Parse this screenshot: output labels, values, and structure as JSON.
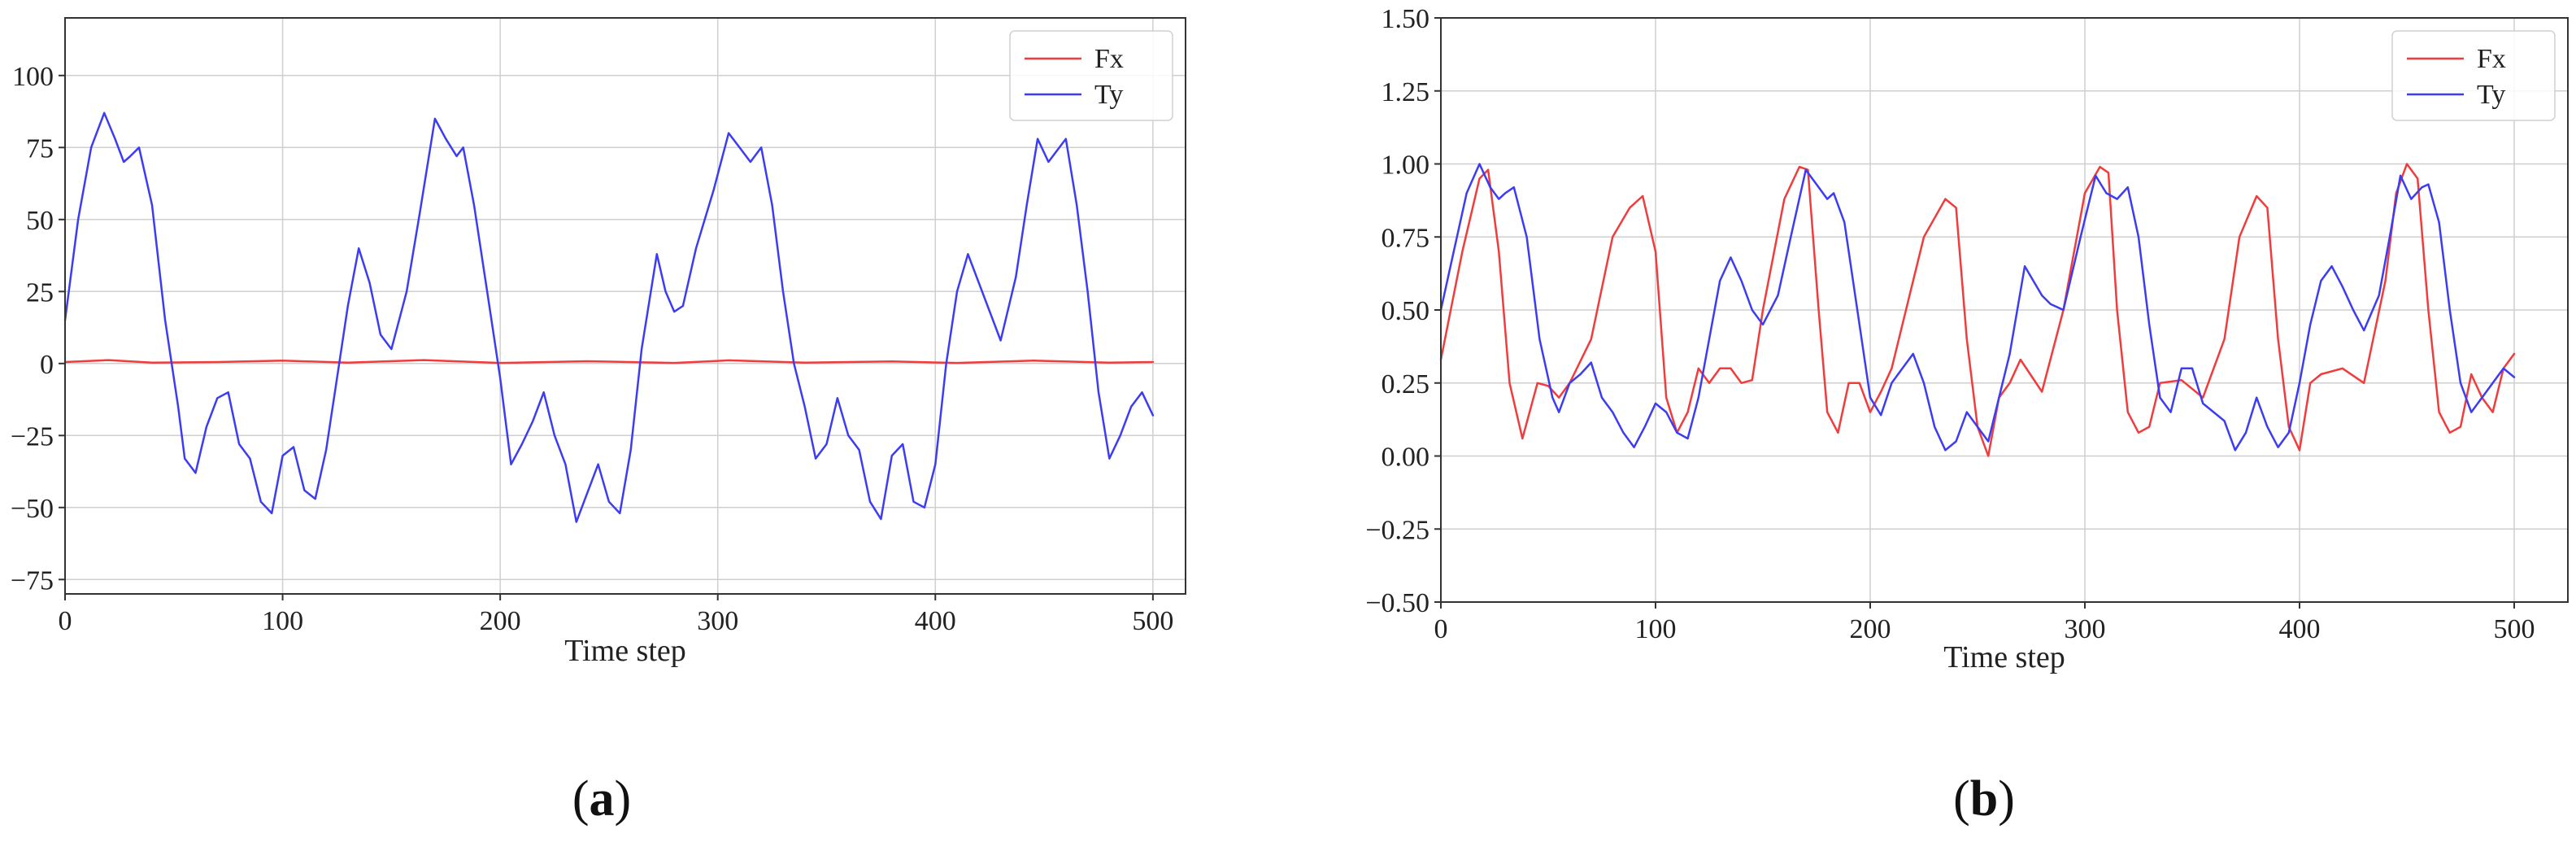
{
  "colors": {
    "fx": "#f03c3c",
    "ty": "#3c3cf5",
    "grid": "#cfcfcf",
    "axis": "#333333"
  },
  "chart_data": [
    {
      "type": "line",
      "panel": "(a)",
      "panel_letter": "a",
      "xlabel": "Time step",
      "ylabel": "",
      "xlim": [
        0,
        515
      ],
      "ylim": [
        -80,
        120
      ],
      "xticks": [
        0,
        100,
        200,
        300,
        400,
        500
      ],
      "yticks": [
        -75,
        -50,
        -25,
        0,
        25,
        50,
        75,
        100
      ],
      "ytick_labels": [
        "−75",
        "−50",
        "−25",
        "0",
        "25",
        "50",
        "75",
        "100"
      ],
      "grid": true,
      "legend_position": "top-right",
      "series": [
        {
          "name": "Fx",
          "color": "#f03c3c",
          "x": [
            0,
            20,
            40,
            70,
            100,
            130,
            165,
            200,
            240,
            280,
            305,
            340,
            380,
            410,
            445,
            480,
            500
          ],
          "y": [
            0.5,
            1.2,
            0.3,
            0.5,
            1,
            0.3,
            1.2,
            0.2,
            0.8,
            0.2,
            1.1,
            0.3,
            0.7,
            0.2,
            1,
            0.3,
            0.5
          ]
        },
        {
          "name": "Ty",
          "color": "#3c3cf5",
          "x": [
            0,
            6,
            12,
            18,
            23,
            27,
            30,
            34,
            40,
            46,
            52,
            55,
            60,
            65,
            70,
            75,
            80,
            85,
            90,
            95,
            100,
            105,
            110,
            115,
            120,
            125,
            130,
            135,
            140,
            145,
            150,
            157,
            163,
            170,
            175,
            180,
            183,
            188,
            195,
            200,
            205,
            210,
            215,
            220,
            225,
            230,
            235,
            240,
            245,
            250,
            255,
            260,
            265,
            272,
            276,
            280,
            284,
            290,
            298,
            305,
            310,
            315,
            320,
            325,
            330,
            335,
            340,
            345,
            350,
            355,
            360,
            365,
            370,
            375,
            380,
            385,
            390,
            395,
            400,
            405,
            410,
            415,
            420,
            425,
            430,
            437,
            442,
            447,
            452,
            457,
            460,
            465,
            470,
            475,
            480,
            485,
            490,
            495,
            500
          ],
          "y": [
            15,
            50,
            75,
            87,
            78,
            70,
            72,
            75,
            55,
            15,
            -15,
            -33,
            -38,
            -22,
            -12,
            -10,
            -28,
            -33,
            -48,
            -52,
            -32,
            -29,
            -44,
            -47,
            -30,
            -5,
            20,
            40,
            28,
            10,
            5,
            25,
            52,
            85,
            78,
            72,
            75,
            55,
            20,
            -5,
            -35,
            -28,
            -20,
            -10,
            -25,
            -35,
            -55,
            -45,
            -35,
            -48,
            -52,
            -30,
            5,
            38,
            25,
            18,
            20,
            40,
            60,
            80,
            75,
            70,
            75,
            55,
            25,
            0,
            -15,
            -33,
            -28,
            -12,
            -25,
            -30,
            -48,
            -54,
            -32,
            -28,
            -48,
            -50,
            -35,
            0,
            25,
            38,
            28,
            18,
            8,
            30,
            55,
            78,
            70,
            75,
            78,
            55,
            25,
            -10,
            -33,
            -25,
            -15,
            -10,
            -18
          ]
        }
      ]
    },
    {
      "type": "line",
      "panel": "(b)",
      "panel_letter": "b",
      "xlabel": "Time step",
      "ylabel": "",
      "xlim": [
        0,
        525
      ],
      "ylim": [
        -0.5,
        1.5
      ],
      "xticks": [
        0,
        100,
        200,
        300,
        400,
        500
      ],
      "yticks": [
        -0.5,
        -0.25,
        0,
        0.25,
        0.5,
        0.75,
        1.0,
        1.25,
        1.5
      ],
      "ytick_labels": [
        "−0.50",
        "−0.25",
        "0.00",
        "0.25",
        "0.50",
        "0.75",
        "1.00",
        "1.25",
        "1.50"
      ],
      "grid": true,
      "legend_position": "top-right",
      "series": [
        {
          "name": "Fx",
          "color": "#f03c3c",
          "x": [
            0,
            10,
            18,
            22,
            27,
            32,
            38,
            45,
            50,
            55,
            60,
            70,
            80,
            88,
            94,
            100,
            105,
            110,
            115,
            120,
            125,
            130,
            135,
            140,
            145,
            150,
            160,
            167,
            171,
            176,
            180,
            185,
            190,
            195,
            200,
            205,
            210,
            215,
            225,
            235,
            240,
            245,
            250,
            255,
            260,
            265,
            270,
            280,
            290,
            300,
            307,
            311,
            315,
            320,
            325,
            330,
            335,
            345,
            355,
            365,
            372,
            380,
            385,
            390,
            395,
            400,
            405,
            410,
            420,
            430,
            440,
            445,
            450,
            455,
            460,
            465,
            470,
            475,
            480,
            485,
            490,
            495,
            500
          ],
          "y": [
            0.33,
            0.7,
            0.95,
            0.98,
            0.7,
            0.25,
            0.06,
            0.25,
            0.24,
            0.2,
            0.25,
            0.4,
            0.75,
            0.85,
            0.89,
            0.7,
            0.2,
            0.08,
            0.15,
            0.3,
            0.25,
            0.3,
            0.3,
            0.25,
            0.26,
            0.5,
            0.88,
            0.99,
            0.98,
            0.5,
            0.15,
            0.08,
            0.25,
            0.25,
            0.15,
            0.22,
            0.3,
            0.45,
            0.75,
            0.88,
            0.85,
            0.4,
            0.1,
            0.0,
            0.2,
            0.25,
            0.33,
            0.22,
            0.5,
            0.9,
            0.99,
            0.97,
            0.5,
            0.15,
            0.08,
            0.1,
            0.25,
            0.26,
            0.2,
            0.4,
            0.75,
            0.89,
            0.85,
            0.4,
            0.1,
            0.02,
            0.25,
            0.28,
            0.3,
            0.25,
            0.6,
            0.9,
            1.0,
            0.95,
            0.5,
            0.15,
            0.08,
            0.1,
            0.28,
            0.2,
            0.15,
            0.3,
            0.35
          ]
        },
        {
          "name": "Ty",
          "color": "#3c3cf5",
          "x": [
            0,
            6,
            12,
            18,
            23,
            27,
            30,
            34,
            40,
            46,
            52,
            55,
            60,
            65,
            70,
            75,
            80,
            85,
            90,
            95,
            100,
            105,
            110,
            115,
            120,
            125,
            130,
            135,
            140,
            145,
            150,
            157,
            163,
            170,
            175,
            180,
            183,
            188,
            195,
            200,
            205,
            210,
            215,
            220,
            225,
            230,
            235,
            240,
            245,
            250,
            255,
            260,
            265,
            272,
            276,
            280,
            284,
            290,
            298,
            305,
            310,
            315,
            320,
            325,
            330,
            335,
            340,
            345,
            350,
            355,
            360,
            365,
            370,
            375,
            380,
            385,
            390,
            395,
            400,
            405,
            410,
            415,
            420,
            425,
            430,
            437,
            442,
            447,
            452,
            457,
            460,
            465,
            470,
            475,
            480,
            485,
            490,
            495,
            500
          ],
          "y": [
            0.5,
            0.7,
            0.9,
            1.0,
            0.92,
            0.88,
            0.9,
            0.92,
            0.75,
            0.4,
            0.2,
            0.15,
            0.25,
            0.28,
            0.32,
            0.2,
            0.15,
            0.08,
            0.03,
            0.1,
            0.18,
            0.15,
            0.08,
            0.06,
            0.2,
            0.4,
            0.6,
            0.68,
            0.6,
            0.5,
            0.45,
            0.55,
            0.75,
            0.98,
            0.93,
            0.88,
            0.9,
            0.8,
            0.45,
            0.2,
            0.14,
            0.25,
            0.3,
            0.35,
            0.25,
            0.1,
            0.02,
            0.05,
            0.15,
            0.1,
            0.05,
            0.2,
            0.35,
            0.65,
            0.6,
            0.55,
            0.52,
            0.5,
            0.75,
            0.96,
            0.9,
            0.88,
            0.92,
            0.75,
            0.45,
            0.2,
            0.15,
            0.3,
            0.3,
            0.18,
            0.15,
            0.12,
            0.02,
            0.08,
            0.2,
            0.1,
            0.03,
            0.08,
            0.25,
            0.45,
            0.6,
            0.65,
            0.58,
            0.5,
            0.43,
            0.55,
            0.75,
            0.96,
            0.88,
            0.92,
            0.93,
            0.8,
            0.5,
            0.25,
            0.15,
            0.2,
            0.25,
            0.3,
            0.27
          ]
        }
      ]
    }
  ]
}
